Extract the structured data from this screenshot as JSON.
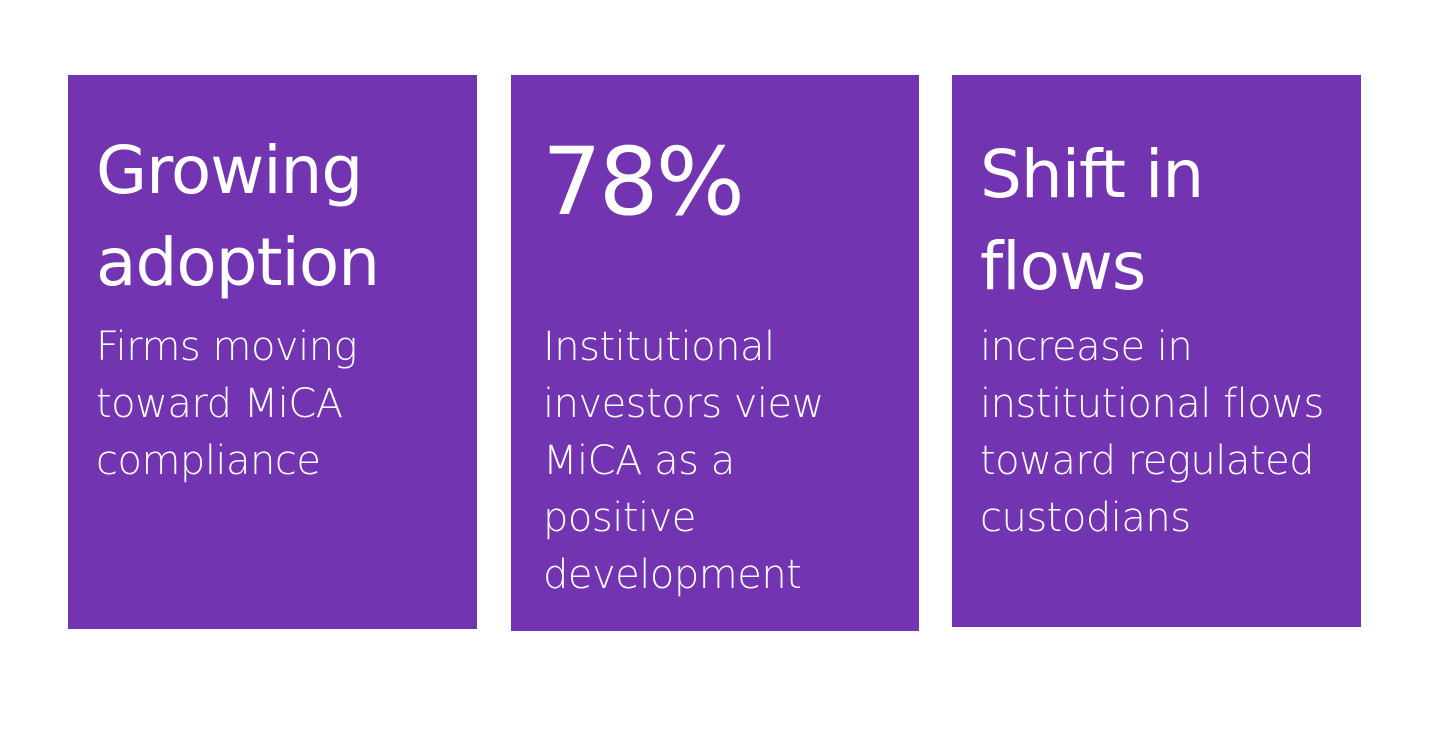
{
  "theme": {
    "card_background": "#7234b0",
    "text_color": "#ffffff",
    "page_background": "#ffffff"
  },
  "cards": [
    {
      "title": "Growing\nadoption",
      "description": "Firms moving\ntoward MiCA\ncompliance"
    },
    {
      "title": "78%",
      "description": "Institutional\ninvestors view\nMiCA as a\npositive\ndevelopment"
    },
    {
      "title": "Shift in\nflows",
      "description": "increase in\ninstitutional flows\ntoward regulated\ncustodians"
    }
  ]
}
